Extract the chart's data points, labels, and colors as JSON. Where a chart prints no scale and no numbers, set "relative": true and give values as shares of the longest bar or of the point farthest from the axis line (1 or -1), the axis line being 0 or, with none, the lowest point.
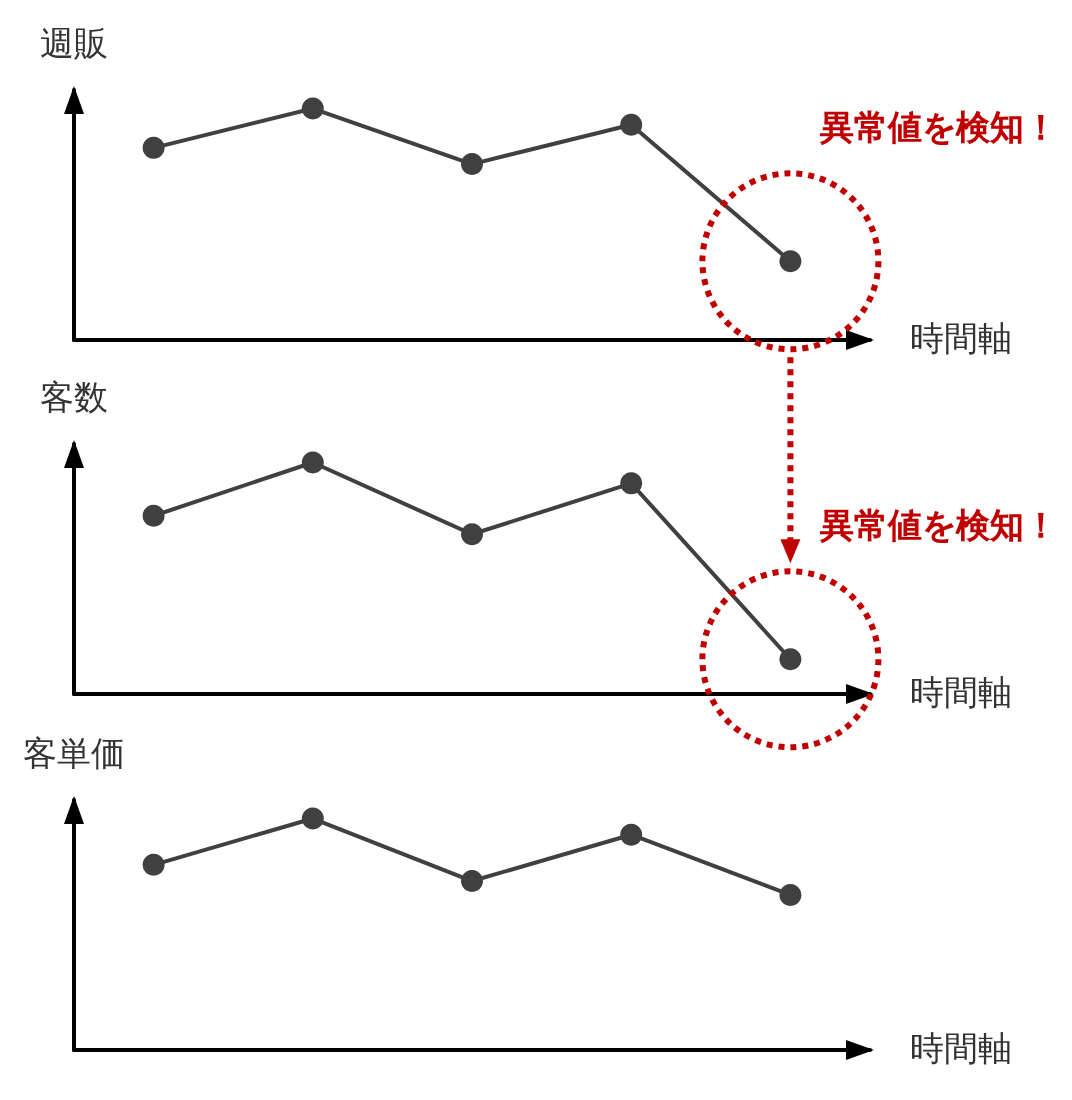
{
  "chart_data": [
    {
      "type": "line",
      "ylabel": "週販",
      "xlabel": "時間軸",
      "categories": [
        null,
        null,
        null,
        null,
        null
      ],
      "values": [
        0.83,
        1,
        0.76,
        0.93,
        0.34
      ],
      "color": "#404040",
      "relative": true,
      "marker": "circle",
      "grid": false,
      "annotations": [
        "異常値を検知！"
      ]
    },
    {
      "type": "line",
      "ylabel": "客数",
      "xlabel": "時間軸",
      "categories": [
        null,
        null,
        null,
        null,
        null
      ],
      "values": [
        0.77,
        1,
        0.69,
        0.91,
        0.15
      ],
      "color": "#404040",
      "relative": true,
      "marker": "circle",
      "grid": false,
      "annotations": [
        "異常値を検知！"
      ]
    },
    {
      "type": "line",
      "ylabel": "客単価",
      "xlabel": "時間軸",
      "categories": [
        null,
        null,
        null,
        null,
        null
      ],
      "values": [
        0.8,
        1,
        0.73,
        0.93,
        0.67
      ],
      "color": "#404040",
      "relative": true,
      "marker": "circle",
      "grid": false
    }
  ]
}
